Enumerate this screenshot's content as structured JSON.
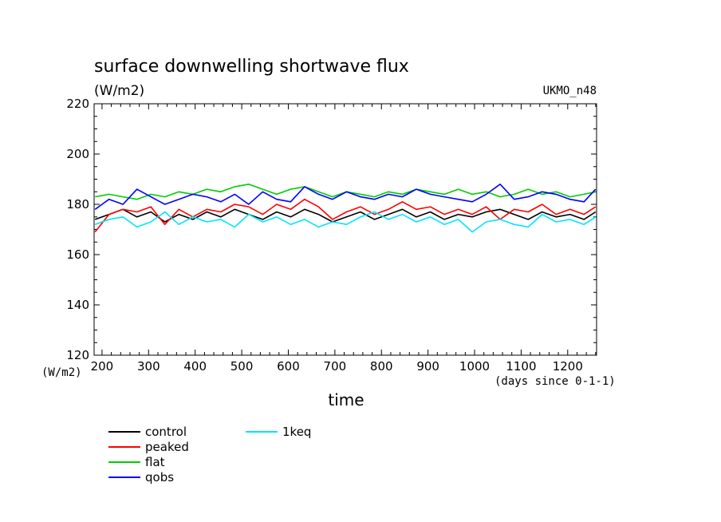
{
  "chart_data": {
    "type": "line",
    "title": "surface downwelling shortwave flux",
    "units": "(W/m2)",
    "model": "UKMO_n48",
    "y_axis_unit_label": "(W/m2)",
    "xlabel": "time",
    "x_unit_label": "(days since 0-1-1)",
    "xlim": [
      183,
      1262
    ],
    "ylim": [
      120,
      220
    ],
    "xticks": [
      200,
      300,
      400,
      500,
      600,
      700,
      800,
      900,
      1000,
      1100,
      1200
    ],
    "yticks": [
      120,
      140,
      160,
      180,
      200,
      220
    ],
    "grid": false,
    "legend_position": "bottom-left",
    "x": [
      185,
      215,
      245,
      275,
      305,
      335,
      365,
      395,
      425,
      455,
      485,
      515,
      545,
      575,
      605,
      635,
      665,
      695,
      725,
      755,
      785,
      815,
      845,
      875,
      905,
      935,
      965,
      995,
      1025,
      1055,
      1085,
      1115,
      1145,
      1175,
      1205,
      1235,
      1260
    ],
    "series": [
      {
        "name": "control",
        "color": "#000000",
        "values": [
          174,
          176,
          178,
          175,
          177,
          173,
          176,
          174,
          177,
          175,
          178,
          176,
          174,
          177,
          175,
          178,
          176,
          173,
          175,
          177,
          174,
          176,
          178,
          175,
          177,
          174,
          176,
          175,
          177,
          178,
          176,
          174,
          177,
          175,
          176,
          174,
          177
        ]
      },
      {
        "name": "peaked",
        "color": "#ff0000",
        "values": [
          169,
          176,
          178,
          177,
          179,
          172,
          178,
          175,
          178,
          177,
          180,
          179,
          176,
          180,
          178,
          182,
          179,
          174,
          177,
          179,
          176,
          178,
          181,
          178,
          179,
          176,
          178,
          176,
          179,
          174,
          178,
          177,
          180,
          176,
          178,
          176,
          179
        ]
      },
      {
        "name": "flat",
        "color": "#00cc00",
        "values": [
          183,
          184,
          183,
          182,
          184,
          183,
          185,
          184,
          186,
          185,
          187,
          188,
          186,
          184,
          186,
          187,
          185,
          183,
          185,
          184,
          183,
          185,
          184,
          186,
          185,
          184,
          186,
          184,
          185,
          183,
          184,
          186,
          184,
          185,
          183,
          184,
          185
        ]
      },
      {
        "name": "qobs",
        "color": "#0000ff",
        "values": [
          178,
          182,
          180,
          186,
          183,
          180,
          182,
          184,
          183,
          181,
          184,
          180,
          185,
          182,
          181,
          187,
          184,
          182,
          185,
          183,
          182,
          184,
          183,
          186,
          184,
          183,
          182,
          181,
          184,
          188,
          182,
          183,
          185,
          184,
          182,
          181,
          186
        ]
      },
      {
        "name": "1keq",
        "color": "#00e5ff",
        "values": [
          172,
          174,
          175,
          171,
          173,
          177,
          172,
          175,
          173,
          174,
          171,
          176,
          173,
          175,
          172,
          174,
          171,
          173,
          172,
          175,
          177,
          174,
          176,
          173,
          175,
          172,
          174,
          169,
          173,
          174,
          172,
          171,
          176,
          173,
          174,
          172,
          175
        ]
      }
    ]
  }
}
